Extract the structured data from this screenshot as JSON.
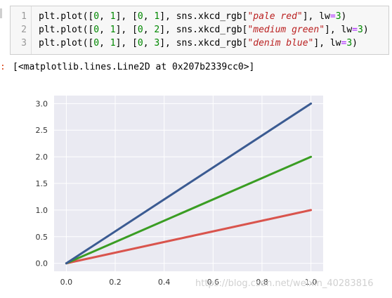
{
  "code_cell": {
    "line_numbers": [
      "1",
      "2",
      "3"
    ],
    "lines": [
      {
        "pre": "plt.plot([",
        "n1": "0",
        "s1": ", ",
        "n2": "1",
        "s2": "], [",
        "n3": "0",
        "s3": ", ",
        "n4": "1",
        "s4": "], sns.xkcd_rgb[",
        "str": "\"pale red\"",
        "s5": "], lw",
        "op": "=",
        "n5": "3",
        "post": ")"
      },
      {
        "pre": "plt.plot([",
        "n1": "0",
        "s1": ", ",
        "n2": "1",
        "s2": "], [",
        "n3": "0",
        "s3": ", ",
        "n4": "2",
        "s4": "], sns.xkcd_rgb[",
        "str": "\"medium green\"",
        "s5": "], lw",
        "op": "=",
        "n5": "3",
        "post": ")"
      },
      {
        "pre": "plt.plot([",
        "n1": "0",
        "s1": ", ",
        "n2": "1",
        "s2": "], [",
        "n3": "0",
        "s3": ", ",
        "n4": "3",
        "s4": "], sns.xkcd_rgb[",
        "str": "\"denim blue\"",
        "s5": "], lw",
        "op": "=",
        "n5": "3",
        "post": ")"
      }
    ]
  },
  "output": {
    "prompt": ":",
    "text": "[<matplotlib.lines.Line2D at 0x207b2339cc0>]"
  },
  "chart_data": {
    "type": "line",
    "xlim": [
      -0.05,
      1.05
    ],
    "ylim": [
      -0.15,
      3.15
    ],
    "x_ticks": [
      "0.0",
      "0.2",
      "0.4",
      "0.6",
      "0.8",
      "1.0"
    ],
    "y_ticks": [
      "0.0",
      "0.5",
      "1.0",
      "1.5",
      "2.0",
      "2.5",
      "3.0"
    ],
    "grid": true,
    "background": "#eaeaf2",
    "series": [
      {
        "x": [
          0,
          1
        ],
        "y": [
          0,
          1
        ],
        "color": "#d9544d"
      },
      {
        "x": [
          0,
          1
        ],
        "y": [
          0,
          2
        ],
        "color": "#3a9d23"
      },
      {
        "x": [
          0,
          1
        ],
        "y": [
          0,
          3
        ],
        "color": "#3b5b92"
      }
    ]
  },
  "watermark": "https://blog.csdn.net/weixin_40283816"
}
